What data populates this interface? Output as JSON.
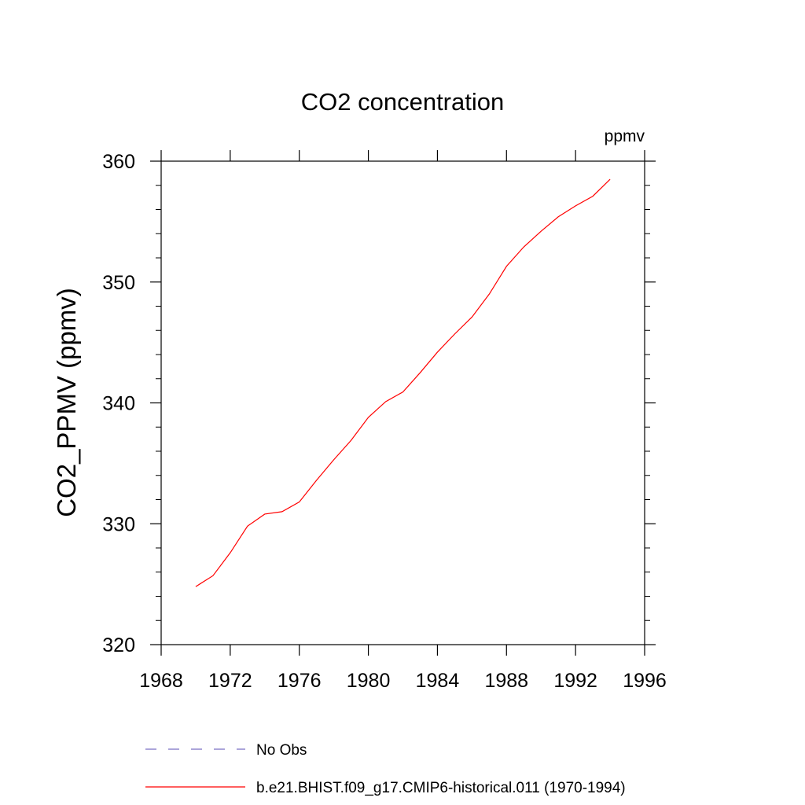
{
  "chart_data": {
    "type": "line",
    "title": "CO2 concentration",
    "units_label": "ppmv",
    "xlabel": "",
    "ylabel": "CO2_PPMV  (ppmv)",
    "xlim": [
      1968,
      1996
    ],
    "ylim": [
      320,
      360
    ],
    "x_ticks": [
      "1968",
      "1972",
      "1976",
      "1980",
      "1984",
      "1988",
      "1992",
      "1996"
    ],
    "y_ticks": [
      "320",
      "330",
      "340",
      "350",
      "360"
    ],
    "grid": false,
    "legend_position": "bottom",
    "series": [
      {
        "name": "b.e21.BHIST.f09_g17.CMIP6-historical.011 (1970-1994)",
        "color": "#ff0000",
        "style": "solid",
        "x": [
          1970,
          1971,
          1972,
          1973,
          1974,
          1975,
          1976,
          1977,
          1978,
          1979,
          1980,
          1981,
          1982,
          1983,
          1984,
          1985,
          1986,
          1987,
          1988,
          1989,
          1990,
          1991,
          1992,
          1993,
          1994
        ],
        "y": [
          324.8,
          325.7,
          327.6,
          329.8,
          330.8,
          331.0,
          331.8,
          333.6,
          335.3,
          336.9,
          338.8,
          340.1,
          340.9,
          342.5,
          344.2,
          345.7,
          347.1,
          349.0,
          351.3,
          352.9,
          354.2,
          355.4,
          356.3,
          357.1,
          358.5
        ]
      }
    ],
    "legend": [
      {
        "label": "No Obs",
        "color": "#7b6fc4",
        "style": "dashed"
      },
      {
        "label": "b.e21.BHIST.f09_g17.CMIP6-historical.011 (1970-1994)",
        "color": "#ff0000",
        "style": "solid"
      }
    ]
  }
}
